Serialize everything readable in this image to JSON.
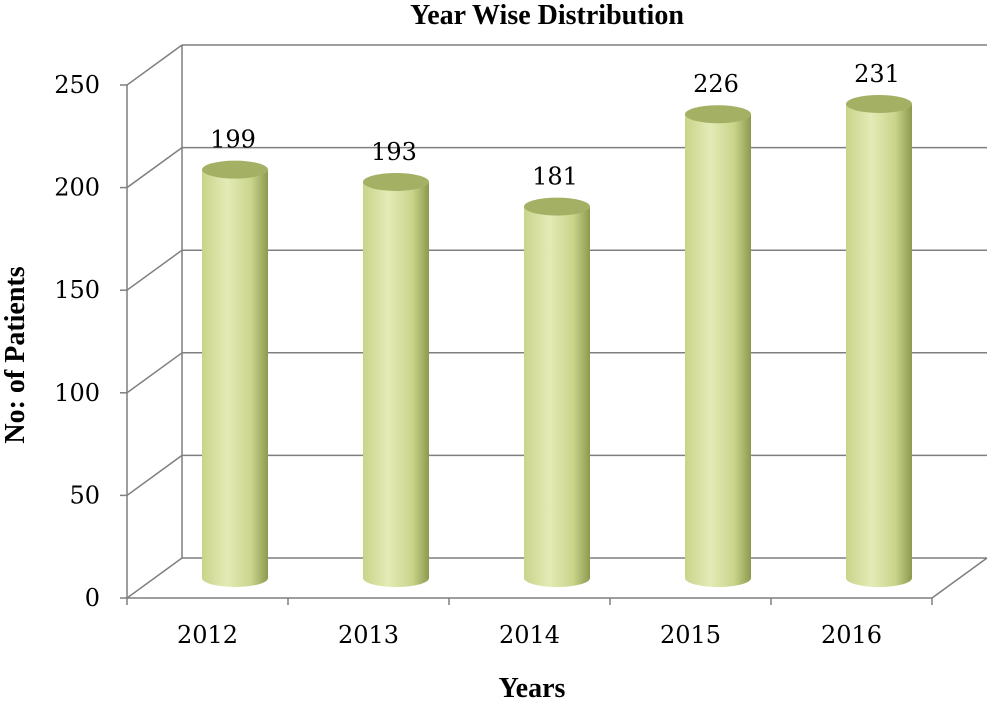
{
  "chart_data": {
    "type": "bar",
    "title": "Year Wise Distribution",
    "xlabel": "Years",
    "ylabel": "No: of Patients",
    "categories": [
      "2012",
      "2013",
      "2014",
      "2015",
      "2016"
    ],
    "values": [
      199,
      193,
      181,
      226,
      231
    ],
    "value_labels": [
      "199",
      "193",
      "181",
      "226",
      "231"
    ],
    "yticks": [
      "0",
      "50",
      "100",
      "150",
      "200",
      "250"
    ],
    "ylim": [
      0,
      250
    ],
    "grid": true,
    "legend": "none",
    "style": "3d-cylinder"
  },
  "colors": {
    "bar_light": "#e4ebb6",
    "bar_mid": "#c9d48a",
    "bar_dark": "#8c9a4e",
    "bar_top": "#a4b165",
    "grid": "#7f7f7f"
  }
}
